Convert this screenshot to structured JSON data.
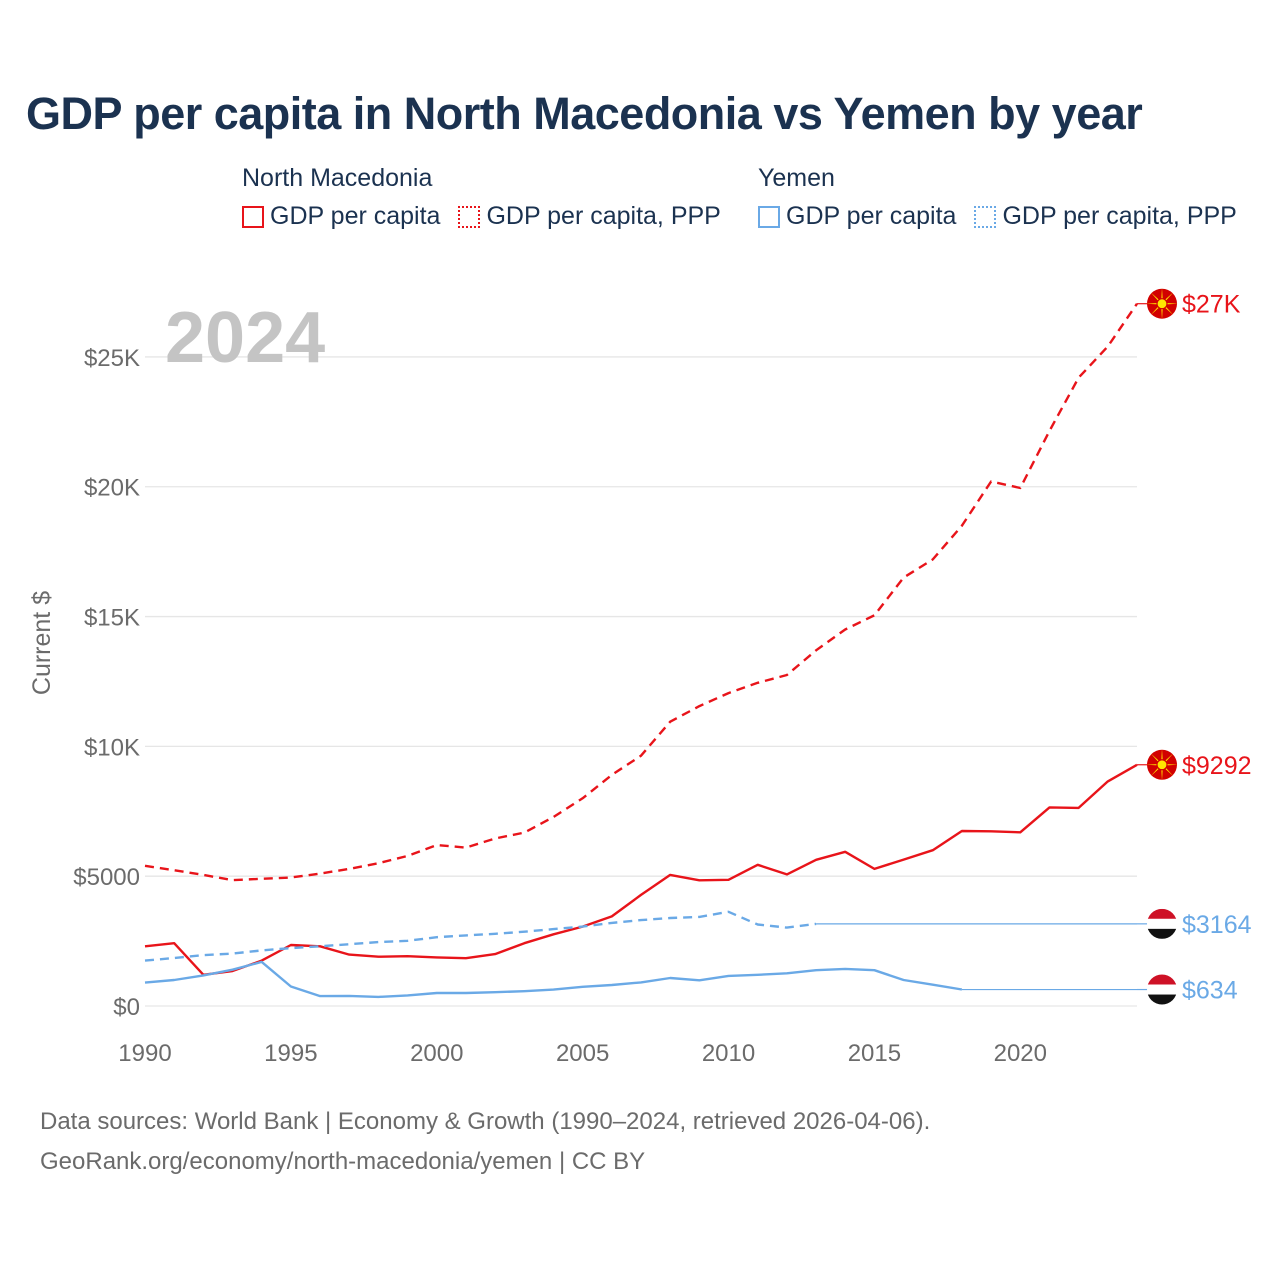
{
  "title": "GDP per capita in North Macedonia vs Yemen by year",
  "colors": {
    "north_macedonia": "#e8141a",
    "yemen": "#6aa9e6",
    "grid": "#e6e6e6",
    "axis_text": "#6b6b6b",
    "title": "#1b3250",
    "year_watermark": "#c4c4c4"
  },
  "legend": {
    "groups": [
      {
        "name": "North Macedonia",
        "items": [
          "GDP per capita",
          "GDP per capita, PPP"
        ]
      },
      {
        "name": "Yemen",
        "items": [
          "GDP per capita",
          "GDP per capita, PPP"
        ]
      }
    ]
  },
  "footer": {
    "line1": "Data sources: World Bank | Economy & Growth (1990–2024, retrieved 2026-04-06).",
    "line2": "GeoRank.org/economy/north-macedonia/yemen | CC BY"
  },
  "chart_data": {
    "type": "line",
    "year_label": "2024",
    "ylabel": "Current $",
    "xlabel": "",
    "xlim": [
      1990,
      2024
    ],
    "ylim": [
      0,
      27000
    ],
    "x_ticks": [
      1990,
      1995,
      2000,
      2005,
      2010,
      2015,
      2020
    ],
    "y_ticks": [
      0,
      5000,
      10000,
      15000,
      20000,
      25000
    ],
    "y_tick_labels": [
      "$0",
      "$5000",
      "$10K",
      "$15K",
      "$20K",
      "$25K"
    ],
    "x": [
      1990,
      1991,
      1992,
      1993,
      1994,
      1995,
      1996,
      1997,
      1998,
      1999,
      2000,
      2001,
      2002,
      2003,
      2004,
      2005,
      2006,
      2007,
      2008,
      2009,
      2010,
      2011,
      2012,
      2013,
      2014,
      2015,
      2016,
      2017,
      2018,
      2019,
      2020,
      2021,
      2022,
      2023,
      2024
    ],
    "series": [
      {
        "name": "North Macedonia GDP per capita",
        "country": "north_macedonia",
        "style": "solid",
        "end_label": "$9292",
        "values": [
          2300,
          2420,
          1200,
          1350,
          1750,
          2350,
          2300,
          1980,
          1900,
          1920,
          1870,
          1840,
          2000,
          2420,
          2760,
          3060,
          3450,
          4280,
          5050,
          4840,
          4860,
          5440,
          5070,
          5630,
          5940,
          5280,
          5640,
          6000,
          6740,
          6730,
          6690,
          7650,
          7630,
          8650,
          9292
        ]
      },
      {
        "name": "North Macedonia GDP per capita, PPP",
        "country": "north_macedonia",
        "style": "dashed",
        "end_label": "$27K",
        "values": [
          5400,
          5230,
          5050,
          4850,
          4900,
          4950,
          5100,
          5280,
          5500,
          5780,
          6200,
          6100,
          6450,
          6680,
          7280,
          8000,
          8900,
          9640,
          10950,
          11550,
          12050,
          12450,
          12750,
          13700,
          14500,
          15050,
          16500,
          17200,
          18500,
          20200,
          19950,
          22150,
          24200,
          25400,
          27050
        ]
      },
      {
        "name": "Yemen GDP per capita",
        "country": "yemen",
        "style": "solid",
        "end_label": "$634",
        "values": [
          900,
          1000,
          1180,
          1400,
          1700,
          750,
          380,
          390,
          350,
          410,
          500,
          500,
          530,
          570,
          630,
          740,
          810,
          910,
          1080,
          990,
          1160,
          1200,
          1260,
          1380,
          1430,
          1380,
          1000,
          820,
          634,
          null,
          null,
          null,
          null,
          null,
          null
        ]
      },
      {
        "name": "Yemen GDP per capita, PPP",
        "country": "yemen",
        "style": "dashed",
        "end_label": "$3164",
        "values": [
          1750,
          1850,
          1960,
          2020,
          2140,
          2230,
          2300,
          2380,
          2460,
          2510,
          2650,
          2720,
          2780,
          2860,
          2960,
          3060,
          3200,
          3310,
          3390,
          3430,
          3630,
          3140,
          3020,
          3164,
          null,
          null,
          null,
          null,
          null,
          null,
          null,
          null,
          null,
          null,
          null
        ]
      }
    ]
  }
}
